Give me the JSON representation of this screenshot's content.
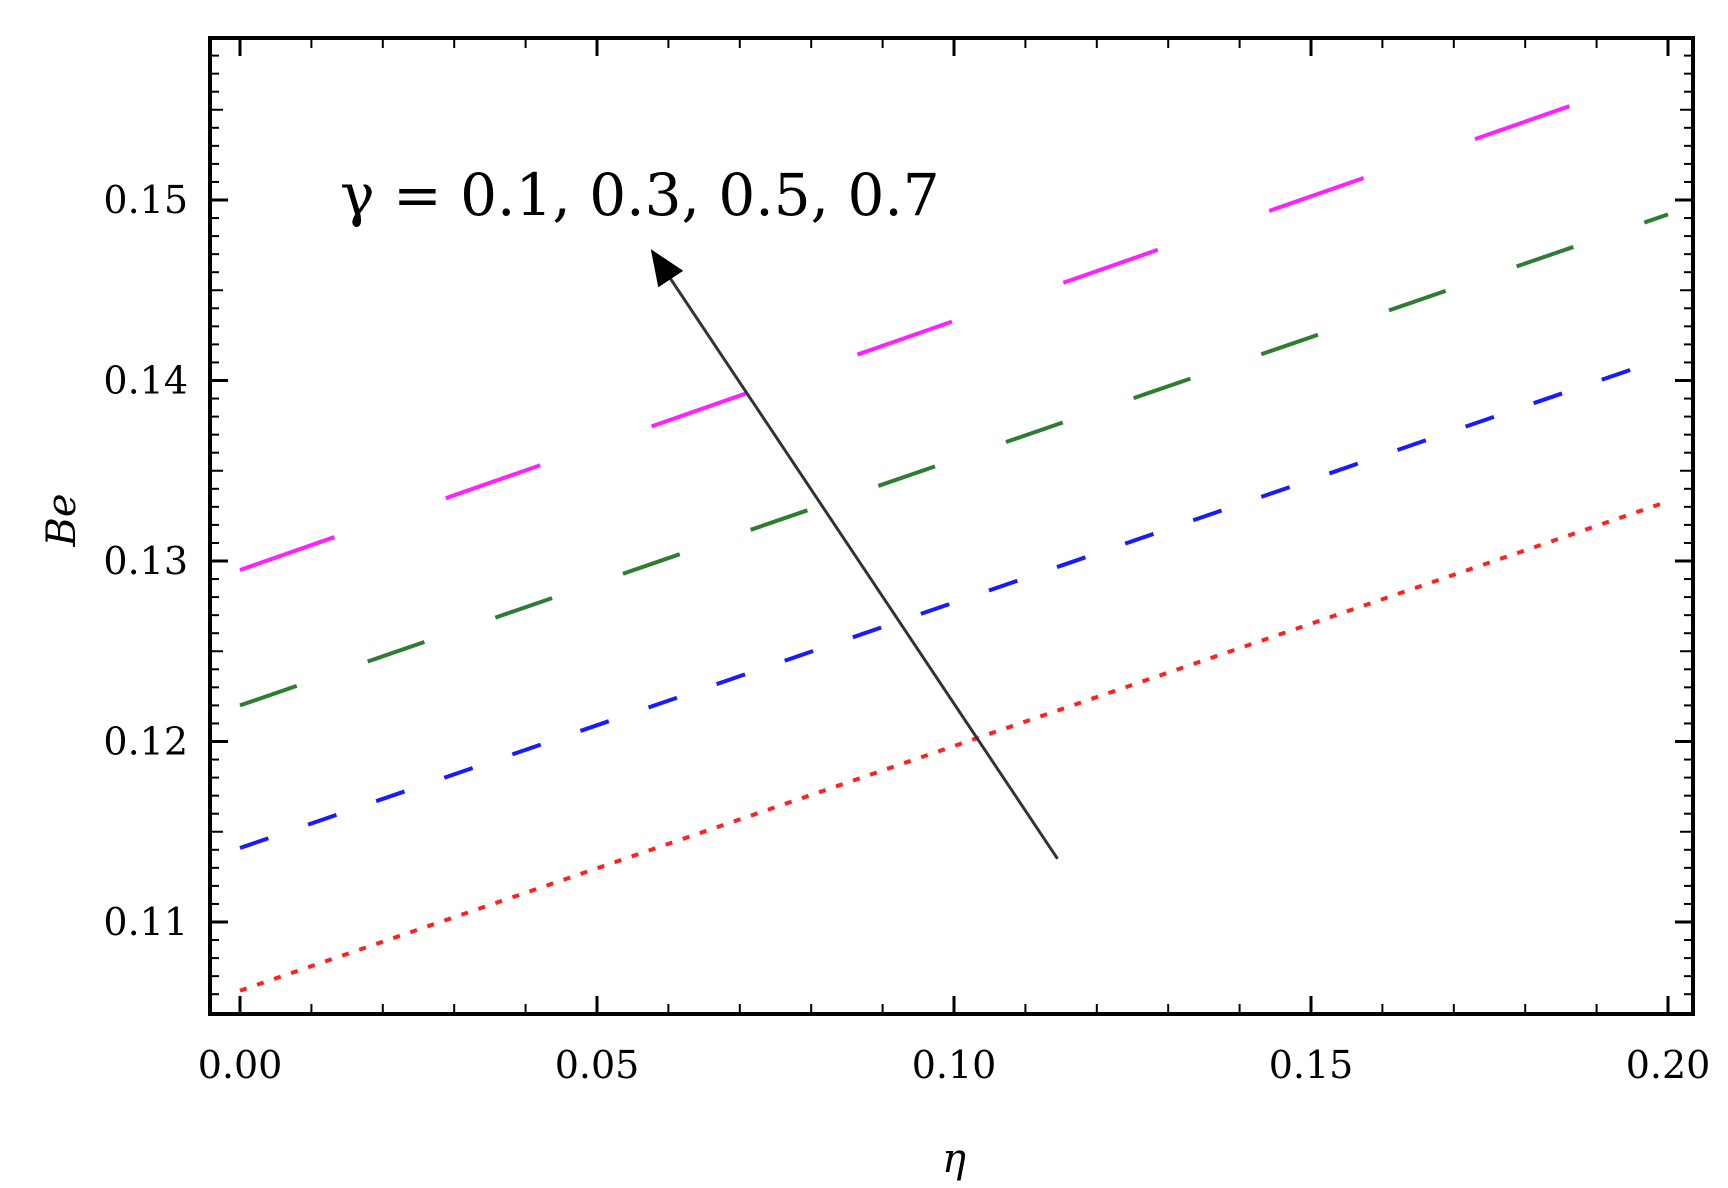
{
  "chart_data": {
    "type": "line",
    "title": "",
    "xlabel": "η",
    "ylabel": "Be",
    "xlim": [
      0.0,
      0.2
    ],
    "ylim": [
      0.105,
      0.158
    ],
    "x_ticks": [
      "0.00",
      "0.05",
      "0.10",
      "0.15",
      "0.20"
    ],
    "x_tick_values": [
      0.0,
      0.05,
      0.1,
      0.15,
      0.2
    ],
    "y_ticks": [
      "0.11",
      "0.12",
      "0.13",
      "0.14",
      "0.15"
    ],
    "y_tick_values": [
      0.11,
      0.12,
      0.13,
      0.14,
      0.15
    ],
    "grid": false,
    "series": [
      {
        "color": "#ff2020",
        "dash": "dotted",
        "x": [
          0.0,
          0.2
        ],
        "y": [
          0.1062,
          0.1333
        ]
      },
      {
        "color": "#1a1aff",
        "dash": "dashed",
        "x": [
          0.0,
          0.2
        ],
        "y": [
          0.1141,
          0.1413
        ]
      },
      {
        "color": "#2e7d32",
        "dash": "longdashed",
        "x": [
          0.0,
          0.2
        ],
        "y": [
          0.122,
          0.1492
        ]
      },
      {
        "color": "#ff20ff",
        "dash": "longerdashed",
        "x": [
          0.0,
          0.2
        ],
        "y": [
          0.1295,
          0.1571
        ]
      }
    ],
    "annotations": [
      {
        "text": "γ = 0.1, 0.3, 0.5, 0.7",
        "arrow": {
          "from": [
            0.1145,
            0.1135
          ],
          "to": [
            0.058,
            0.147
          ]
        }
      }
    ]
  }
}
